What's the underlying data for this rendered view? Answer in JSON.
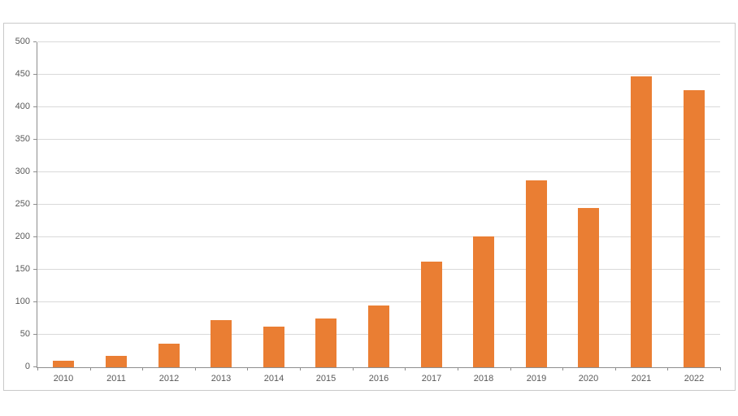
{
  "chart_data": {
    "type": "bar",
    "title": "",
    "xlabel": "",
    "ylabel": "",
    "categories": [
      "2010",
      "2011",
      "2012",
      "2013",
      "2014",
      "2015",
      "2016",
      "2017",
      "2018",
      "2019",
      "2020",
      "2021",
      "2022"
    ],
    "values": [
      10,
      18,
      36,
      72,
      62,
      75,
      95,
      162,
      201,
      287,
      245,
      447,
      426
    ],
    "yticks": [
      "0",
      "50",
      "100",
      "150",
      "200",
      "250",
      "300",
      "350",
      "400",
      "450",
      "500"
    ],
    "ylim": [
      0,
      500
    ],
    "ytick_step": 50,
    "grid": true,
    "legend": false,
    "colors": {
      "bar": "#ea7e33",
      "gridline": "#d9d9d9",
      "axis": "#8e8e8e",
      "label": "#595959",
      "chart_border": "#c9c9c9",
      "background": "#ffffff"
    }
  }
}
